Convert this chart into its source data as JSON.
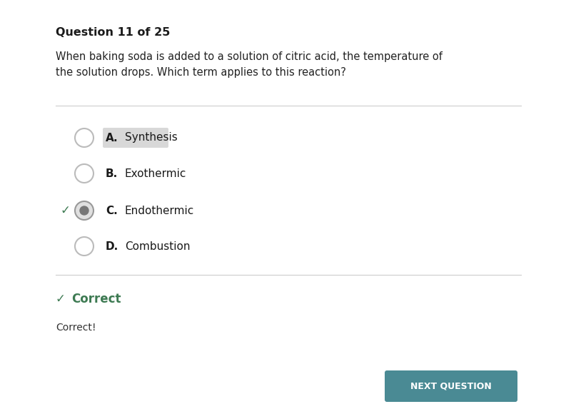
{
  "bg_color": "#ffffff",
  "question_header": "Question 11 of 25",
  "question_text": "When baking soda is added to a solution of citric acid, the temperature of\nthe solution drops. Which term applies to this reaction?",
  "options": [
    {
      "letter": "A.",
      "text": "Synthesis",
      "highlight": true,
      "selected": false
    },
    {
      "letter": "B.",
      "text": "Exothermic",
      "highlight": false,
      "selected": false
    },
    {
      "letter": "C.",
      "text": "Endothermic",
      "highlight": false,
      "selected": true
    },
    {
      "letter": "D.",
      "text": "Combustion",
      "highlight": false,
      "selected": false
    }
  ],
  "correct_label": "Correct",
  "correct_sublabel": "Correct!",
  "button_text": "NEXT QUESTION",
  "button_color": "#4a8a94",
  "button_text_color": "#ffffff",
  "header_fontsize": 11.5,
  "question_fontsize": 10.5,
  "option_fontsize": 11,
  "correct_fontsize": 12,
  "correct_color": "#3d7a52",
  "separator_color": "#cccccc",
  "circle_color": "#bbbbbb",
  "selected_circle_fill": "#e0e0e0",
  "selected_circle_border": "#999999",
  "highlight_bg": "#d8d8d8",
  "check_color": "#3d7a52"
}
